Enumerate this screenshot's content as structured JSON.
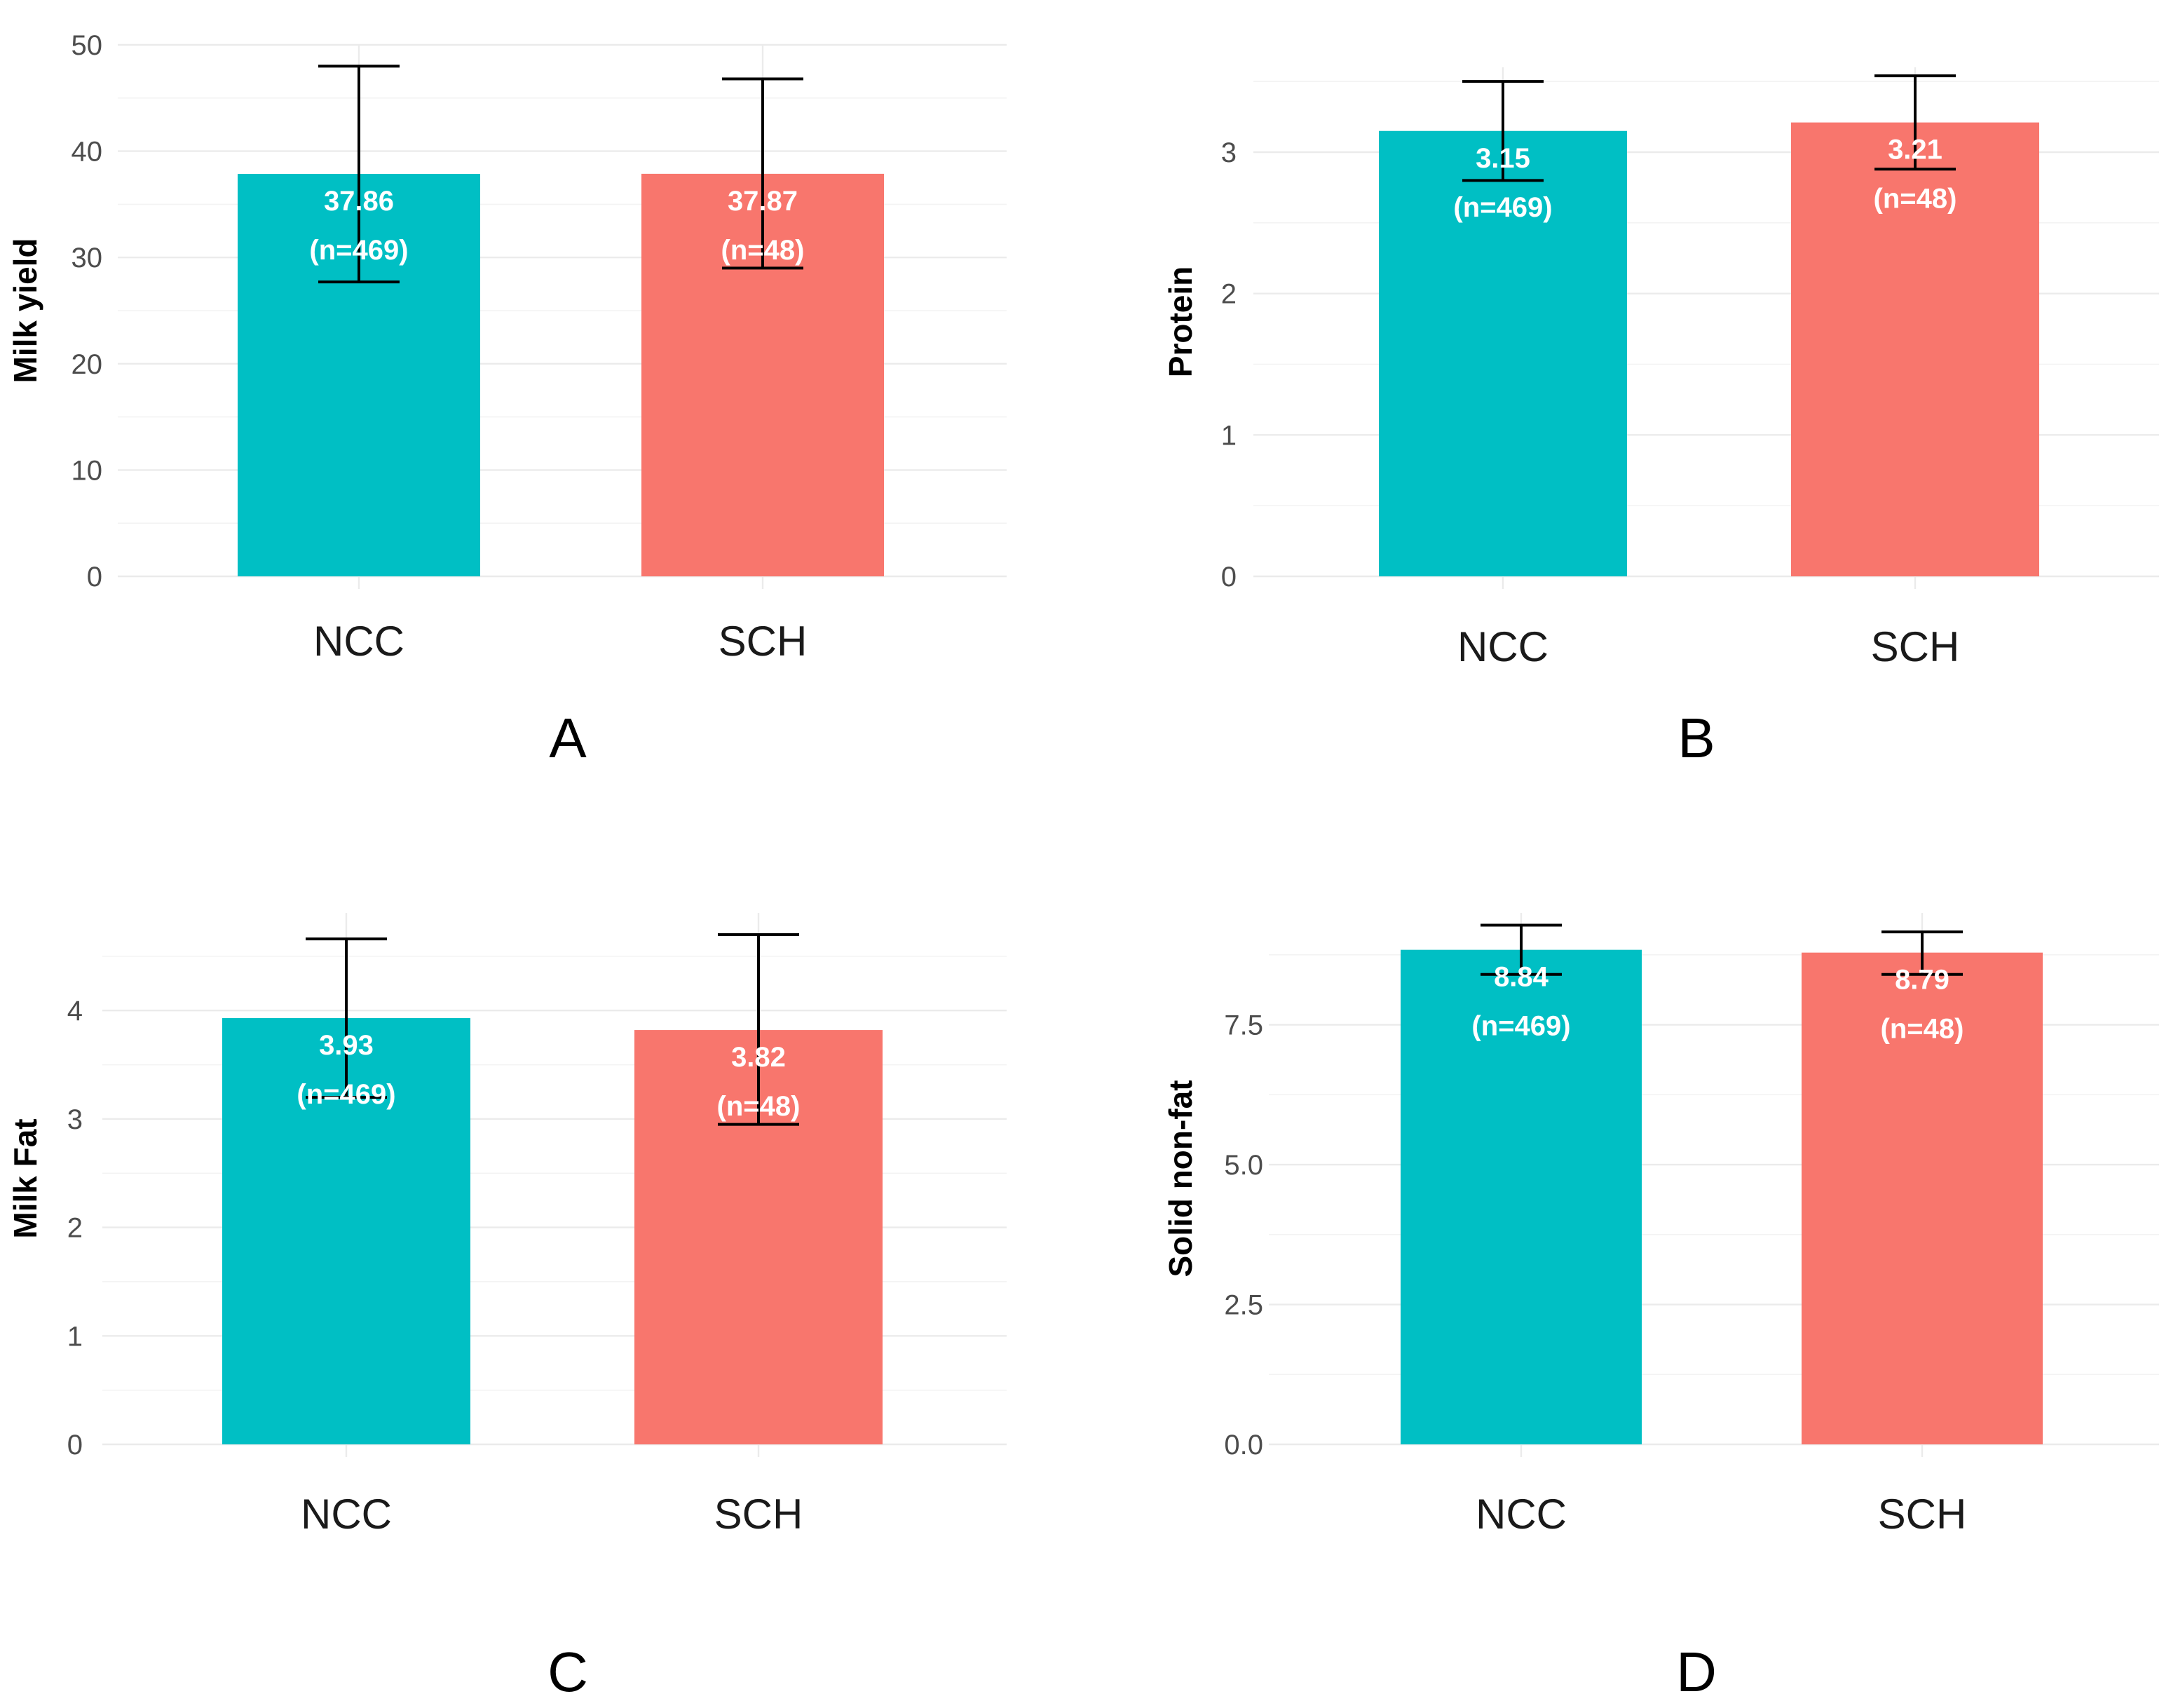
{
  "chart_data": [
    {
      "type": "bar",
      "panel": "A",
      "ylabel": "Milk yield",
      "categories": [
        "NCC",
        "SCH"
      ],
      "values": [
        37.86,
        37.87
      ],
      "error_low": [
        27.7,
        29.0
      ],
      "error_high": [
        48.0,
        46.8
      ],
      "value_labels": [
        "37.86",
        "37.87"
      ],
      "n_labels": [
        "(n=469)",
        "(n=48)"
      ],
      "colors": [
        "#00bfc4",
        "#f8766d"
      ],
      "ylim": [
        0,
        50
      ],
      "yticks": [
        0,
        10,
        20,
        30,
        40,
        50
      ],
      "ytick_labels": [
        "0",
        "10",
        "20",
        "30",
        "40",
        "50"
      ],
      "grid": true
    },
    {
      "type": "bar",
      "panel": "B",
      "ylabel": "Protein",
      "categories": [
        "NCC",
        "SCH"
      ],
      "values": [
        3.15,
        3.21
      ],
      "error_low": [
        2.8,
        2.88
      ],
      "error_high": [
        3.5,
        3.54
      ],
      "value_labels": [
        "3.15",
        "3.21"
      ],
      "n_labels": [
        "(n=469)",
        "(n=48)"
      ],
      "colors": [
        "#00bfc4",
        "#f8766d"
      ],
      "ylim": [
        0,
        3.6
      ],
      "yticks": [
        0,
        1,
        2,
        3
      ],
      "ytick_labels": [
        "0",
        "1",
        "2",
        "3"
      ],
      "grid": true
    },
    {
      "type": "bar",
      "panel": "C",
      "ylabel": "Milk Fat",
      "categories": [
        "NCC",
        "SCH"
      ],
      "values": [
        3.93,
        3.82
      ],
      "error_low": [
        3.2,
        2.95
      ],
      "error_high": [
        4.66,
        4.7
      ],
      "value_labels": [
        "3.93",
        "3.82"
      ],
      "n_labels": [
        "(n=469)",
        "(n=48)"
      ],
      "colors": [
        "#00bfc4",
        "#f8766d"
      ],
      "ylim": [
        0,
        4.9
      ],
      "yticks": [
        0,
        1,
        2,
        3,
        4
      ],
      "ytick_labels": [
        "0",
        "1",
        "2",
        "3",
        "4"
      ],
      "grid": true
    },
    {
      "type": "bar",
      "panel": "D",
      "ylabel": "Solid non-fat",
      "categories": [
        "NCC",
        "SCH"
      ],
      "values": [
        8.84,
        8.79
      ],
      "error_low": [
        8.4,
        8.4
      ],
      "error_high": [
        9.28,
        9.16
      ],
      "value_labels": [
        "8.84",
        "8.79"
      ],
      "n_labels": [
        "(n=469)",
        "(n=48)"
      ],
      "colors": [
        "#00bfc4",
        "#f8766d"
      ],
      "ylim": [
        0,
        9.5
      ],
      "yticks": [
        0,
        2.5,
        5,
        7.5
      ],
      "ytick_labels": [
        "0.0",
        "2.5",
        "5.0",
        "7.5"
      ],
      "grid": true
    }
  ]
}
